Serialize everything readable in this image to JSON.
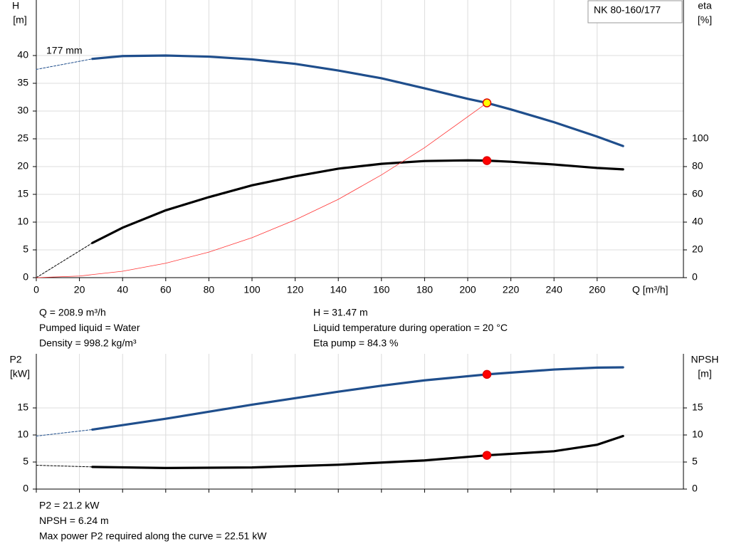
{
  "chart_data": [
    {
      "type": "line",
      "title": "NK 80-160/177",
      "curve_label": "177 mm",
      "x_label": "Q [m³/h]",
      "y_label": [
        "H",
        "[m]"
      ],
      "y2_label": [
        "eta",
        "[%]"
      ],
      "xlim": [
        0,
        300
      ],
      "xticks": [
        0,
        20,
        40,
        60,
        80,
        100,
        120,
        140,
        160,
        180,
        200,
        220,
        240,
        260
      ],
      "ylim": [
        0,
        50
      ],
      "yticks": [
        0,
        5,
        10,
        15,
        20,
        25,
        30,
        35,
        40
      ],
      "y2lim": [
        0,
        200
      ],
      "y2ticks": [
        0,
        20,
        40,
        60,
        80,
        100
      ],
      "grid": true,
      "series": [
        {
          "color": "#1f4e8c",
          "dashed": true,
          "x": [
            0,
            26
          ],
          "values": [
            37.5,
            39.4
          ]
        },
        {
          "color": "#1f4e8c",
          "x": [
            26,
            40,
            60,
            80,
            100,
            120,
            140,
            160,
            180,
            200,
            208.9,
            220,
            240,
            260,
            272
          ],
          "values": [
            39.4,
            39.9,
            40.0,
            39.8,
            39.3,
            38.5,
            37.3,
            35.9,
            34.1,
            32.2,
            31.47,
            30.3,
            28.0,
            25.4,
            23.7
          ]
        },
        {
          "color": "#000000",
          "dashed": true,
          "axis": "y2",
          "x": [
            0,
            26
          ],
          "values": [
            0,
            25
          ]
        },
        {
          "color": "#000000",
          "axis": "y2",
          "x": [
            26,
            40,
            60,
            80,
            100,
            120,
            140,
            160,
            180,
            200,
            208.9,
            220,
            240,
            260,
            272
          ],
          "values": [
            25,
            36,
            48.5,
            58,
            66.5,
            73,
            78.5,
            82,
            84,
            84.5,
            84.3,
            83.5,
            81.5,
            79,
            78
          ]
        },
        {
          "color": "#ff3333",
          "thin": true,
          "x": [
            0,
            20,
            40,
            60,
            80,
            100,
            120,
            140,
            160,
            180,
            208.9
          ],
          "values": [
            0,
            0.29,
            1.15,
            2.6,
            4.6,
            7.2,
            10.4,
            14.1,
            18.5,
            23.4,
            31.47
          ]
        }
      ],
      "points": [
        {
          "x": 208.9,
          "y": 31.47,
          "color": "#ffff00"
        },
        {
          "x": 208.9,
          "y": 84.3,
          "axis": "y2",
          "color": "#ff0000"
        }
      ],
      "info_left": [
        "Q = 208.9 m³/h",
        "Pumped liquid = Water",
        "Density = 998.2 kg/m³"
      ],
      "info_right": [
        "H = 31.47 m",
        "Liquid temperature during operation = 20 °C",
        "Eta pump = 84.3 %"
      ]
    },
    {
      "type": "line",
      "y_label": [
        "P2",
        "[kW]"
      ],
      "y2_label": [
        "NPSH",
        "[m]"
      ],
      "xlim": [
        0,
        300
      ],
      "ylim": [
        0,
        25
      ],
      "yticks": [
        0,
        5,
        10,
        15
      ],
      "y2lim": [
        0,
        25
      ],
      "y2ticks": [
        0,
        5,
        10,
        15
      ],
      "grid": true,
      "series": [
        {
          "color": "#1f4e8c",
          "dashed": true,
          "x": [
            0,
            26
          ],
          "values": [
            9.8,
            11.0
          ]
        },
        {
          "color": "#1f4e8c",
          "x": [
            26,
            60,
            80,
            100,
            120,
            140,
            160,
            180,
            208.9,
            240,
            260,
            272
          ],
          "values": [
            11.0,
            13.0,
            14.3,
            15.6,
            16.8,
            18.0,
            19.1,
            20.1,
            21.2,
            22.1,
            22.45,
            22.5
          ]
        },
        {
          "color": "#000000",
          "dashed": true,
          "axis": "y2",
          "x": [
            0,
            26
          ],
          "values": [
            4.4,
            4.1
          ]
        },
        {
          "color": "#000000",
          "axis": "y2",
          "x": [
            26,
            60,
            100,
            140,
            180,
            208.9,
            240,
            260,
            272
          ],
          "values": [
            4.1,
            3.9,
            4.0,
            4.5,
            5.3,
            6.24,
            7.0,
            8.2,
            9.8
          ]
        }
      ],
      "points": [
        {
          "x": 208.9,
          "y": 21.2,
          "color": "#ff0000"
        },
        {
          "x": 208.9,
          "y": 6.24,
          "axis": "y2",
          "color": "#ff0000"
        }
      ],
      "info_left": [
        "P2 = 21.2 kW",
        "NPSH = 6.24 m",
        "Max power P2 required along the curve = 22.51 kW"
      ]
    }
  ]
}
